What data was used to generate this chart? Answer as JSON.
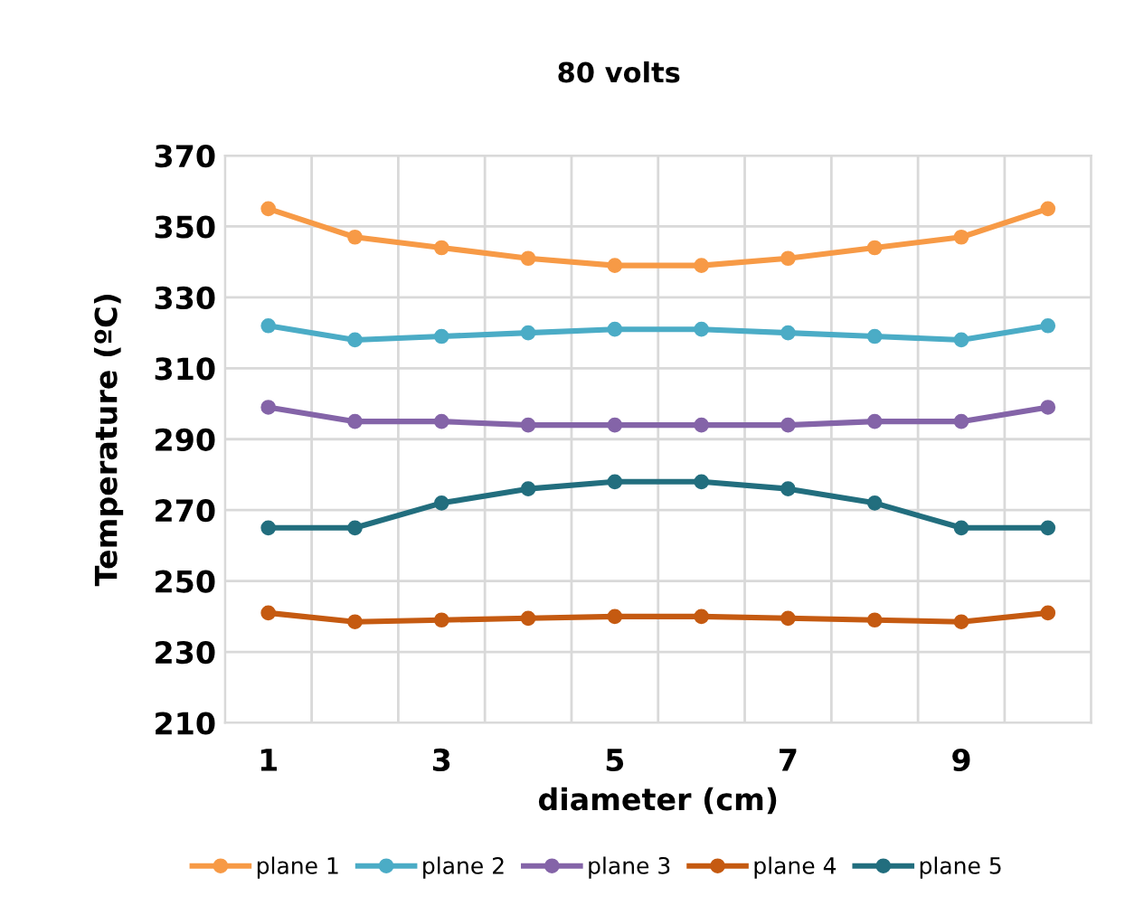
{
  "chart_data": {
    "type": "line",
    "title": "80 volts",
    "xlabel": "diameter (cm)",
    "ylabel": "Temperature (ºC)",
    "categories": [
      "1",
      null,
      "3",
      null,
      "5",
      null,
      "7",
      null,
      "9",
      null
    ],
    "series": [
      {
        "name": "plane 1",
        "color": "#f79a46",
        "values": [
          355,
          347,
          344,
          341,
          339,
          339,
          341,
          344,
          347,
          355
        ]
      },
      {
        "name": "plane 2",
        "color": "#4bacc6",
        "values": [
          322,
          318,
          319,
          320,
          321,
          321,
          320,
          319,
          318,
          322
        ]
      },
      {
        "name": "plane 3",
        "color": "#8464a8",
        "values": [
          299,
          295,
          295,
          294,
          294,
          294,
          294,
          295,
          295,
          299
        ]
      },
      {
        "name": "plane 4",
        "color": "#c55a11",
        "values": [
          241,
          238.5,
          239,
          239.5,
          240,
          240,
          239.5,
          239,
          238.5,
          241
        ]
      },
      {
        "name": "plane 5",
        "color": "#226e7e",
        "values": [
          265,
          265,
          272,
          276,
          278,
          278,
          276,
          272,
          265,
          265
        ]
      }
    ],
    "ylim": [
      210,
      370
    ],
    "yticks": [
      210,
      230,
      250,
      270,
      290,
      310,
      330,
      350,
      370
    ],
    "grid": true,
    "legend": "bottom",
    "marker": "circle",
    "line_style": "solid"
  }
}
